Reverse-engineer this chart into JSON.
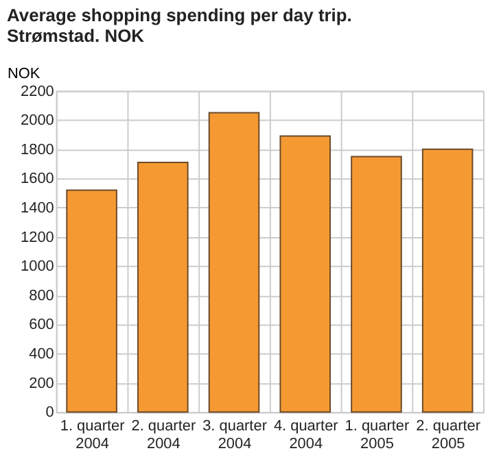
{
  "chart_data": {
    "type": "bar",
    "title": "Average shopping spending per day trip. Strømstad. NOK",
    "ylabel": "NOK",
    "categories": [
      "1. quarter 2004",
      "2. quarter 2004",
      "3. quarter 2004",
      "4. quarter 2004",
      "1. quarter 2005",
      "2. quarter 2005"
    ],
    "values": [
      1520,
      1710,
      2050,
      1890,
      1750,
      1800
    ],
    "color": "#f59a33",
    "ylim": [
      0,
      2200
    ],
    "yticks": [
      0,
      200,
      400,
      600,
      800,
      1000,
      1200,
      1400,
      1600,
      1800,
      2000,
      2200
    ],
    "grid": true
  }
}
